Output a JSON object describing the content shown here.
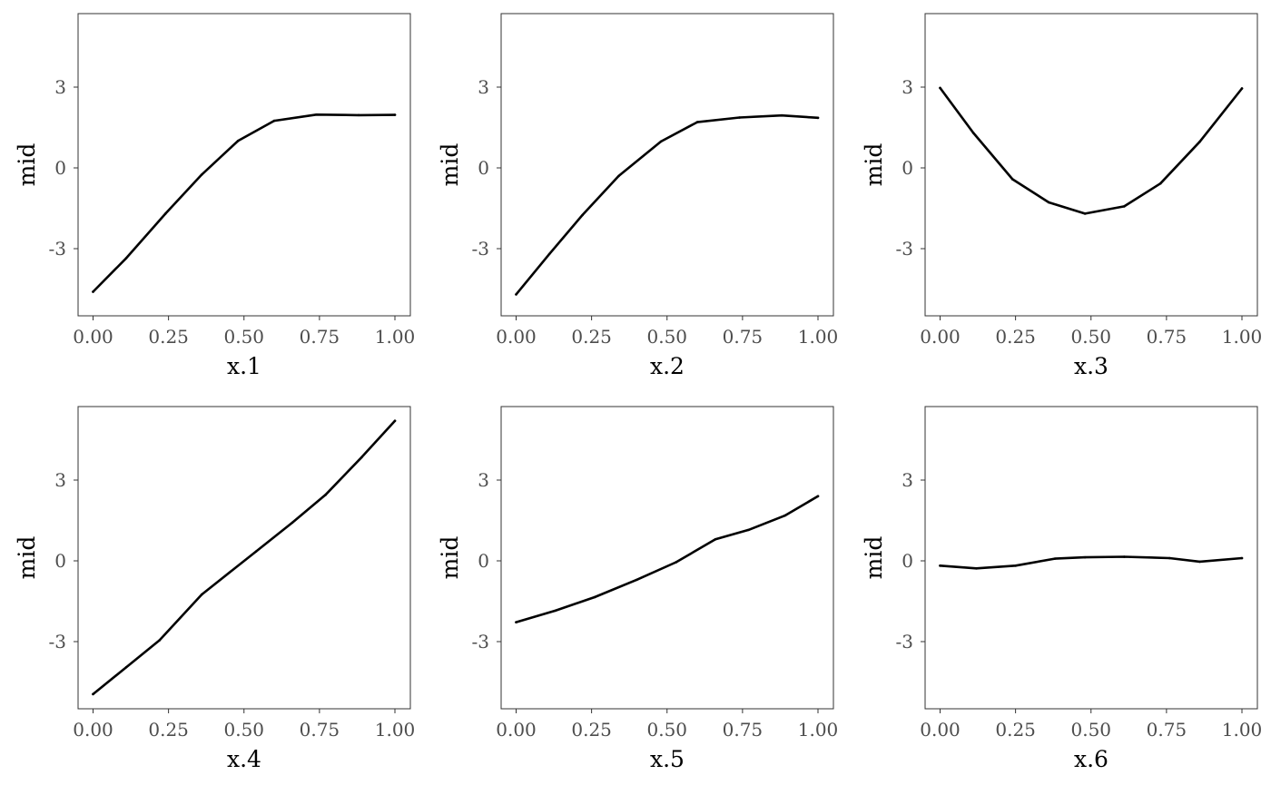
{
  "chart_data": [
    {
      "type": "line",
      "xlabel": "x.1",
      "ylabel": "mid",
      "xlim": [
        0,
        1
      ],
      "ylim": [
        -5.5,
        5.5
      ],
      "x_ticks": [
        "0.00",
        "0.25",
        "0.50",
        "0.75",
        "1.00"
      ],
      "y_ticks": [
        "-3",
        "0",
        "3"
      ],
      "x": [
        0.0,
        0.11,
        0.24,
        0.36,
        0.48,
        0.6,
        0.74,
        0.88,
        1.0
      ],
      "values": [
        -4.6,
        -3.35,
        -1.7,
        -0.25,
        1.0,
        1.75,
        1.98,
        1.96,
        1.97
      ],
      "grid": false
    },
    {
      "type": "line",
      "xlabel": "x.2",
      "ylabel": "mid",
      "xlim": [
        0,
        1
      ],
      "ylim": [
        -5.5,
        5.5
      ],
      "x_ticks": [
        "0.00",
        "0.25",
        "0.50",
        "0.75",
        "1.00"
      ],
      "y_ticks": [
        "-3",
        "0",
        "3"
      ],
      "x": [
        0.0,
        0.11,
        0.22,
        0.34,
        0.48,
        0.6,
        0.74,
        0.88,
        1.0
      ],
      "values": [
        -4.7,
        -3.2,
        -1.75,
        -0.3,
        0.98,
        1.7,
        1.87,
        1.95,
        1.86
      ],
      "grid": false
    },
    {
      "type": "line",
      "xlabel": "x.3",
      "ylabel": "mid",
      "xlim": [
        0,
        1
      ],
      "ylim": [
        -5.5,
        5.5
      ],
      "x_ticks": [
        "0.00",
        "0.25",
        "0.50",
        "0.75",
        "1.00"
      ],
      "y_ticks": [
        "-3",
        "0",
        "3"
      ],
      "x": [
        0.0,
        0.11,
        0.24,
        0.36,
        0.48,
        0.61,
        0.73,
        0.86,
        1.0
      ],
      "values": [
        2.97,
        1.3,
        -0.42,
        -1.28,
        -1.7,
        -1.43,
        -0.58,
        0.97,
        2.95
      ],
      "grid": false
    },
    {
      "type": "line",
      "xlabel": "x.4",
      "ylabel": "mid",
      "xlim": [
        0,
        1
      ],
      "ylim": [
        -5.5,
        5.5
      ],
      "x_ticks": [
        "0.00",
        "0.25",
        "0.50",
        "0.75",
        "1.00"
      ],
      "y_ticks": [
        "-3",
        "0",
        "3"
      ],
      "x": [
        0.0,
        0.11,
        0.22,
        0.36,
        0.54,
        0.66,
        0.77,
        0.89,
        1.0
      ],
      "values": [
        -4.95,
        -3.95,
        -2.95,
        -1.25,
        0.35,
        1.42,
        2.45,
        3.85,
        5.2
      ],
      "grid": false
    },
    {
      "type": "line",
      "xlabel": "x.5",
      "ylabel": "mid",
      "xlim": [
        0,
        1
      ],
      "ylim": [
        -5.5,
        5.5
      ],
      "x_ticks": [
        "0.00",
        "0.25",
        "0.50",
        "0.75",
        "1.00"
      ],
      "y_ticks": [
        "-3",
        "0",
        "3"
      ],
      "x": [
        0.0,
        0.13,
        0.26,
        0.4,
        0.53,
        0.66,
        0.77,
        0.89,
        1.0
      ],
      "values": [
        -2.28,
        -1.85,
        -1.35,
        -0.7,
        -0.05,
        0.8,
        1.15,
        1.68,
        2.4
      ],
      "grid": false
    },
    {
      "type": "line",
      "xlabel": "x.6",
      "ylabel": "mid",
      "xlim": [
        0,
        1
      ],
      "ylim": [
        -5.5,
        5.5
      ],
      "x_ticks": [
        "0.00",
        "0.25",
        "0.50",
        "0.75",
        "1.00"
      ],
      "y_ticks": [
        "-3",
        "0",
        "3"
      ],
      "x": [
        0.0,
        0.12,
        0.25,
        0.38,
        0.48,
        0.61,
        0.76,
        0.86,
        1.0
      ],
      "values": [
        -0.18,
        -0.28,
        -0.18,
        0.08,
        0.13,
        0.15,
        0.1,
        -0.03,
        0.1
      ],
      "grid": false
    }
  ]
}
